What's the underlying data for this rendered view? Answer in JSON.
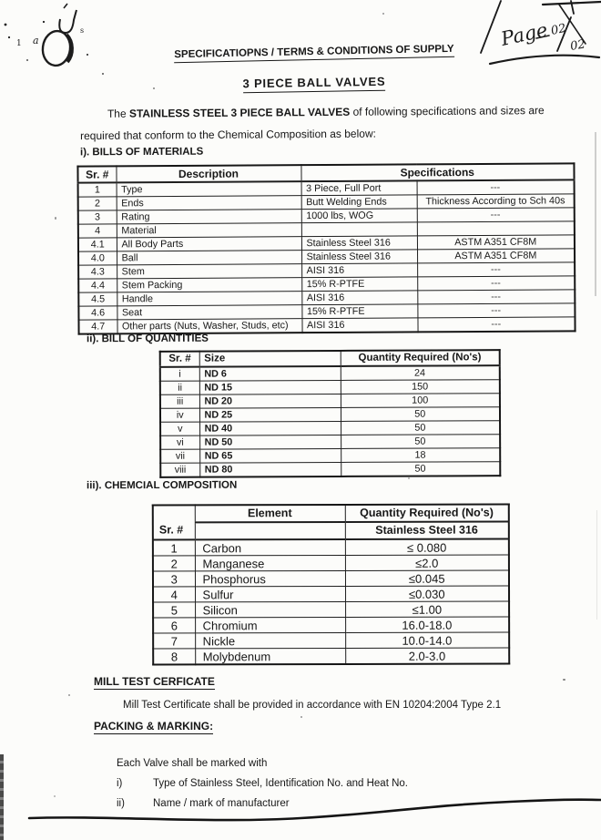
{
  "page": {
    "title": "SPECIFICATIOPNS / TERMS & CONDITIONS OF SUPPLY",
    "subtitle": "3 PIECE BALL VALVES",
    "intro_lead": "The ",
    "intro_bold": "STAINLESS STEEL 3 PIECE BALL VALVES",
    "intro_rest": " of following specifications and sizes are required that conform to the Chemical Composition as below:"
  },
  "handwriting": {
    "page_word": "Page",
    "page_num_top": "02",
    "page_num_bottom": "02"
  },
  "scan_marks": {
    "letter_a": "a",
    "digit_one": "1",
    "letter_s": "s"
  },
  "bills_of_materials": {
    "heading": "i). BILLS OF MATERIALS",
    "headers": {
      "sr": "Sr. #",
      "description": "Description",
      "specifications": "Specifications"
    },
    "rows": [
      {
        "sr": "1",
        "description": "Type",
        "spec1": "3 Piece, Full Port",
        "spec2": "---"
      },
      {
        "sr": "2",
        "description": "Ends",
        "spec1": "Butt Welding Ends",
        "spec2": "Thickness According to Sch 40s"
      },
      {
        "sr": "3",
        "description": "Rating",
        "spec1": "1000 lbs, WOG",
        "spec2": "---"
      },
      {
        "sr": "4",
        "description": "Material",
        "spec1": "",
        "spec2": ""
      },
      {
        "sr": "4.1",
        "description": "All Body Parts",
        "spec1": "Stainless Steel 316",
        "spec2": "ASTM A351 CF8M"
      },
      {
        "sr": "4.0",
        "description": "Ball",
        "spec1": "Stainless Steel 316",
        "spec2": "ASTM A351 CF8M"
      },
      {
        "sr": "4.3",
        "description": "Stem",
        "spec1": "AISI 316",
        "spec2": "---"
      },
      {
        "sr": "4.4",
        "description": "Stem Packing",
        "spec1": "15% R-PTFE",
        "spec2": "---"
      },
      {
        "sr": "4.5",
        "description": "Handle",
        "spec1": "AISI 316",
        "spec2": "---"
      },
      {
        "sr": "4.6",
        "description": "Seat",
        "spec1": "15% R-PTFE",
        "spec2": "---"
      },
      {
        "sr": "4.7",
        "description": "Other parts (Nuts, Washer, Studs, etc)",
        "spec1": "AISI 316",
        "spec2": "---"
      }
    ]
  },
  "bill_of_quantities": {
    "heading": "ii). BILL OF QUANTITIES",
    "headers": {
      "sr": "Sr. #",
      "size": "Size",
      "quantity": "Quantity Required (No's)"
    },
    "rows": [
      {
        "sr": "i",
        "size": "ND 6",
        "quantity": "24"
      },
      {
        "sr": "ii",
        "size": "ND 15",
        "quantity": "150"
      },
      {
        "sr": "iii",
        "size": "ND 20",
        "quantity": "100"
      },
      {
        "sr": "iv",
        "size": "ND 25",
        "quantity": "50"
      },
      {
        "sr": "v",
        "size": "ND 40",
        "quantity": "50"
      },
      {
        "sr": "vi",
        "size": "ND 50",
        "quantity": "50"
      },
      {
        "sr": "vii",
        "size": "ND 65",
        "quantity": "18"
      },
      {
        "sr": "viii",
        "size": "ND 80",
        "quantity": "50"
      }
    ]
  },
  "chemical_composition": {
    "heading": "iii). CHEMCIAL COMPOSITION",
    "headers": {
      "sr": "Sr. #",
      "element": "Element",
      "quantity": "Quantity Required (No's)",
      "quantity_sub": "Stainless Steel 316"
    },
    "rows": [
      {
        "sr": "1",
        "element": "Carbon",
        "value": "≤ 0.080"
      },
      {
        "sr": "2",
        "element": "Manganese",
        "value": "≤2.0"
      },
      {
        "sr": "3",
        "element": "Phosphorus",
        "value": "≤0.045"
      },
      {
        "sr": "4",
        "element": "Sulfur",
        "value": "≤0.030"
      },
      {
        "sr": "5",
        "element": "Silicon",
        "value": "≤1.00"
      },
      {
        "sr": "6",
        "element": "Chromium",
        "value": "16.0-18.0"
      },
      {
        "sr": "7",
        "element": "Nickle",
        "value": "10.0-14.0"
      },
      {
        "sr": "8",
        "element": "Molybdenum",
        "value": "2.0-3.0"
      }
    ]
  },
  "mill_test": {
    "heading": "MILL TEST CERFICATE",
    "body": "Mill Test Certificate shall be provided in accordance with EN 10204:2004 Type 2.1"
  },
  "packing_marking": {
    "heading": "PACKING & MARKING:",
    "intro": "Each Valve shall be marked with",
    "items": [
      {
        "marker": "i)",
        "text": "Type of Stainless Steel, Identification No. and Heat No."
      },
      {
        "marker": "ii)",
        "text": "Name / mark of manufacturer"
      }
    ]
  }
}
